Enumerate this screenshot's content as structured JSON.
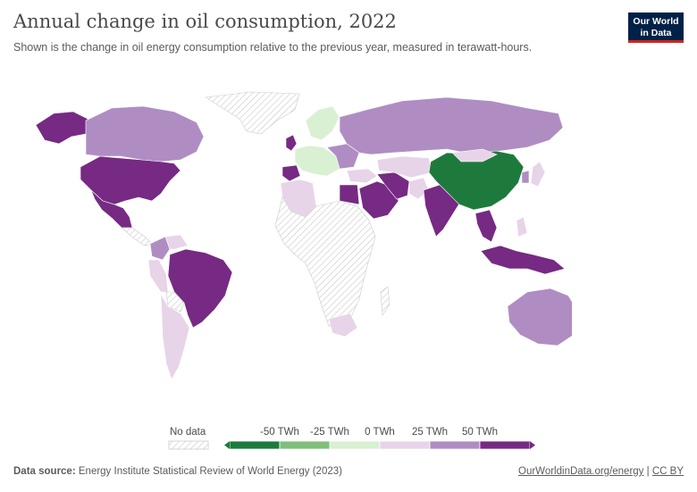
{
  "header": {
    "title": "Annual change in oil consumption, 2022",
    "subtitle": "Shown is the change in oil energy consumption relative to the previous year, measured in terawatt-hours."
  },
  "logo": {
    "line1": "Our World",
    "line2": "in Data"
  },
  "legend": {
    "no_data_label": "No data",
    "bins": [
      "-50 TWh",
      "-25 TWh",
      "0 TWh",
      "25 TWh",
      "50 TWh"
    ],
    "colors": [
      "#1e7a3c",
      "#7fbf7b",
      "#d9f0d3",
      "#e7d4e8",
      "#af8dc3",
      "#762a83"
    ]
  },
  "footer": {
    "source_label": "Data source:",
    "source_text": "Energy Institute Statistical Review of World Energy (2023)",
    "site_link": "OurWorldinData.org/energy",
    "separator": "|",
    "license": "CC BY"
  },
  "colors": {
    "strong_decrease": "#1e7a3c",
    "small_increase": "#e7d4e8",
    "medium_increase": "#af8dc3",
    "large_increase": "#762a83",
    "small_decrease": "#d9f0d3",
    "no_data": "#ffffff"
  }
}
